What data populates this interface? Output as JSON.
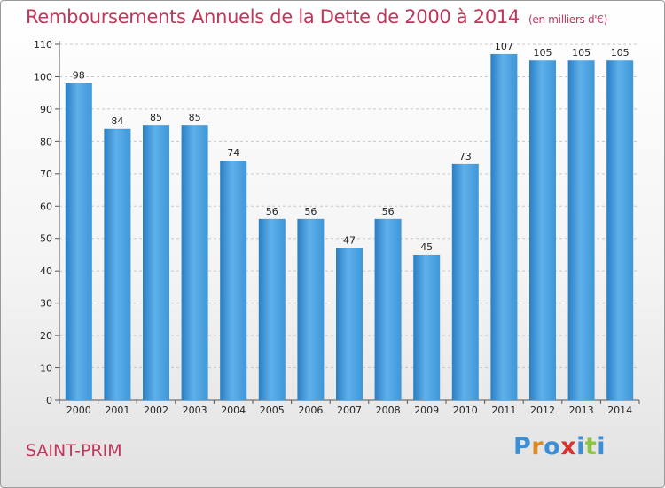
{
  "header": {
    "title": "Remboursements Annuels de la Dette de 2000 à 2014",
    "unit": "(en milliers d'€)"
  },
  "footer": {
    "place": "SAINT-PRIM",
    "logo_letters": [
      "P",
      "r",
      "o",
      "x",
      "i",
      "t",
      "i"
    ],
    "logo_colors": [
      "#3a8fd6",
      "#e08a1e",
      "#3a8fd6",
      "#d8322e",
      "#3a8fd6",
      "#8cc63f",
      "#3a8fd6"
    ]
  },
  "colors": {
    "bar": "#3f97d8",
    "bar_light": "#5eb0ea",
    "bar_dark": "#2a7fc4",
    "title": "#c0375a",
    "grid": "#c8c8c8"
  },
  "chart_data": {
    "type": "bar",
    "categories": [
      "2000",
      "2001",
      "2002",
      "2003",
      "2004",
      "2005",
      "2006",
      "2007",
      "2008",
      "2009",
      "2010",
      "2011",
      "2012",
      "2013",
      "2014"
    ],
    "values": [
      98,
      84,
      85,
      85,
      74,
      56,
      56,
      47,
      56,
      45,
      73,
      107,
      105,
      105,
      105
    ],
    "ylim": [
      0,
      110
    ],
    "yticks": [
      0,
      10,
      20,
      30,
      40,
      50,
      60,
      70,
      80,
      90,
      100,
      110
    ],
    "grid": true,
    "data_labels": true
  }
}
